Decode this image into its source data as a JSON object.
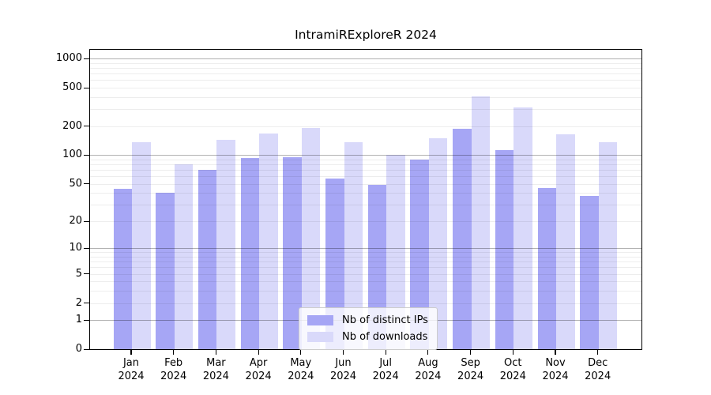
{
  "chart_data": {
    "type": "bar",
    "title": "IntramiRExploreR 2024",
    "categories": [
      "Jan",
      "Feb",
      "Mar",
      "Apr",
      "May",
      "Jun",
      "Jul",
      "Aug",
      "Sep",
      "Oct",
      "Nov",
      "Dec"
    ],
    "year_label": "2024",
    "series": [
      {
        "name": "Nb of distinct IPs",
        "color": "#a6a6f5",
        "values": [
          44,
          40,
          70,
          93,
          95,
          57,
          49,
          89,
          188,
          113,
          45,
          37
        ]
      },
      {
        "name": "Nb of downloads",
        "color": "#d9d9fa",
        "values": [
          135,
          80,
          145,
          168,
          190,
          137,
          100,
          150,
          408,
          312,
          165,
          137
        ]
      }
    ],
    "xlabel": "",
    "ylabel": "",
    "y_scale": "log1p",
    "ylim": [
      0,
      1235
    ],
    "y_ticks": [
      0,
      1,
      2,
      5,
      10,
      20,
      50,
      100,
      200,
      500,
      1000
    ],
    "y_major_gridlines": [
      1,
      10,
      100,
      1000
    ],
    "y_minor_gridlines_pattern": "2-9 per decade (2-9, 20-90, 200-900)",
    "grid": true,
    "legend_position": "lower center",
    "legend_labels": [
      "Nb of distinct IPs",
      "Nb of downloads"
    ]
  }
}
